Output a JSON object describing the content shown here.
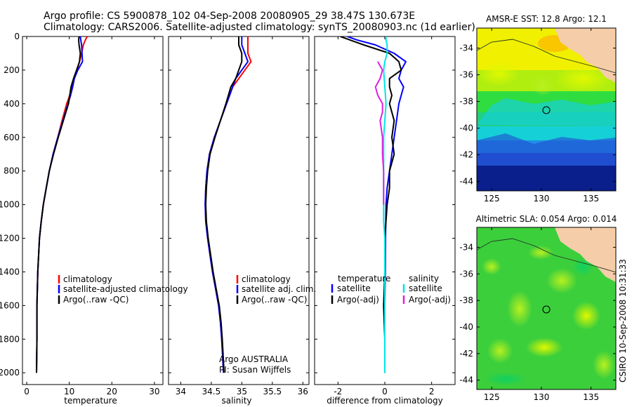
{
  "header": {
    "line1": "Argo profile: CS 5900878_102 04-Sep-2008 20080905_29 38.47S 130.673E",
    "line2": "Climatology: CARS2006. Satellite-adjusted climatology: synTS_20080903.nc (1d earlier)"
  },
  "side_label": "CSIRO 10-Sep-2008 10:31:33",
  "chart_data": [
    {
      "id": "temperature",
      "type": "line",
      "xlabel": "temperature",
      "ylabel": "",
      "xlim": [
        -1,
        32
      ],
      "ylim": [
        2070,
        0
      ],
      "xticks": [
        0,
        10,
        20,
        30
      ],
      "yticks": [
        0,
        200,
        400,
        600,
        800,
        1000,
        1200,
        1400,
        1600,
        1800,
        2000
      ],
      "legend": [
        "climatology",
        "satellite-adjusted climatology",
        "Argo(..raw -QC)"
      ],
      "series": [
        {
          "name": "climatology",
          "color": "#ff0000",
          "x": [
            14.2,
            13.8,
            13.3,
            12.9,
            12.4,
            11.8,
            11.1,
            10.6,
            10.1,
            9.4,
            8.3,
            7.3,
            6.2,
            5.3,
            4.6,
            3.9,
            3.4,
            3.0,
            2.8,
            2.6,
            2.5,
            2.4,
            2.4,
            2.3
          ],
          "y": [
            0,
            20,
            50,
            100,
            150,
            200,
            250,
            300,
            350,
            400,
            500,
            600,
            700,
            800,
            900,
            1000,
            1100,
            1200,
            1300,
            1400,
            1500,
            1600,
            1800,
            2000
          ]
        },
        {
          "name": "satellite-adjusted climatology",
          "color": "#0000ff",
          "x": [
            12.6,
            12.7,
            12.9,
            13.0,
            13.1,
            12.0,
            11.2,
            10.8,
            10.3,
            9.7,
            8.5,
            7.3,
            6.2,
            5.3,
            4.6,
            3.9,
            3.4,
            3.0,
            2.8,
            2.6,
            2.5,
            2.4,
            2.4,
            2.3
          ],
          "y": [
            0,
            20,
            50,
            100,
            150,
            200,
            250,
            300,
            350,
            400,
            500,
            600,
            700,
            800,
            900,
            1000,
            1100,
            1200,
            1300,
            1400,
            1500,
            1600,
            1800,
            2000
          ]
        },
        {
          "name": "Argo(..raw -QC)",
          "color": "#000000",
          "x": [
            12.3,
            12.2,
            12.3,
            12.6,
            12.4,
            11.7,
            11.0,
            10.4,
            10.1,
            9.8,
            8.6,
            7.4,
            6.3,
            5.3,
            4.6,
            3.9,
            3.4,
            3.0,
            2.8,
            2.6,
            2.5,
            2.4,
            2.4,
            2.3
          ],
          "y": [
            0,
            20,
            50,
            100,
            150,
            200,
            250,
            300,
            350,
            400,
            500,
            600,
            700,
            800,
            900,
            1000,
            1100,
            1200,
            1300,
            1400,
            1500,
            1600,
            1800,
            2000
          ]
        }
      ]
    },
    {
      "id": "salinity",
      "type": "line",
      "xlabel": "salinity",
      "ylabel": "",
      "xlim": [
        33.8,
        36.1
      ],
      "ylim": [
        2070,
        0
      ],
      "xticks": [
        34,
        34.5,
        35,
        35.5,
        36
      ],
      "xticklabels": [
        "34",
        "34.5",
        "35",
        "35.5",
        "36"
      ],
      "legend": [
        "climatology",
        "satellite adj. clim.",
        "Argo(..raw -QC)"
      ],
      "annotation": [
        "Argo AUSTRALIA",
        "PI: Susan Wijffels"
      ],
      "series": [
        {
          "name": "climatology",
          "color": "#ff0000",
          "x": [
            35.1,
            35.1,
            35.1,
            35.1,
            35.15,
            35.05,
            34.95,
            34.85,
            34.8,
            34.75,
            34.65,
            34.55,
            34.47,
            34.43,
            34.41,
            34.4,
            34.41,
            34.44,
            34.48,
            34.52,
            34.57,
            34.62,
            34.65,
            34.67,
            34.7
          ],
          "y": [
            0,
            20,
            50,
            100,
            150,
            200,
            250,
            300,
            350,
            400,
            500,
            600,
            700,
            800,
            900,
            1000,
            1100,
            1200,
            1300,
            1400,
            1500,
            1600,
            1700,
            1800,
            2000
          ]
        },
        {
          "name": "satellite adj. clim.",
          "color": "#0000ff",
          "x": [
            35.0,
            35.0,
            35.0,
            35.05,
            35.1,
            35.0,
            34.9,
            34.85,
            34.8,
            34.75,
            34.65,
            34.55,
            34.47,
            34.43,
            34.41,
            34.4,
            34.41,
            34.44,
            34.48,
            34.52,
            34.57,
            34.62,
            34.65,
            34.67,
            34.7
          ],
          "y": [
            0,
            20,
            50,
            100,
            150,
            200,
            250,
            300,
            350,
            400,
            500,
            600,
            700,
            800,
            900,
            1000,
            1100,
            1200,
            1300,
            1400,
            1500,
            1600,
            1700,
            1800,
            2000
          ]
        },
        {
          "name": "Argo(..raw -QC)",
          "color": "#000000",
          "x": [
            34.95,
            34.95,
            34.95,
            35.0,
            35.0,
            34.95,
            34.9,
            34.82,
            34.78,
            34.74,
            34.65,
            34.56,
            34.48,
            34.44,
            34.42,
            34.41,
            34.42,
            34.45,
            34.49,
            34.53,
            34.58,
            34.63,
            34.66,
            34.68,
            34.71
          ],
          "y": [
            0,
            20,
            50,
            100,
            150,
            200,
            250,
            300,
            350,
            400,
            500,
            600,
            700,
            800,
            900,
            1000,
            1100,
            1200,
            1300,
            1400,
            1500,
            1600,
            1700,
            1800,
            2000
          ]
        }
      ]
    },
    {
      "id": "difference",
      "type": "line",
      "xlabel": "difference from climatology",
      "ylabel": "",
      "xlim": [
        -3,
        3
      ],
      "ylim": [
        2070,
        0
      ],
      "xticks": [
        -2,
        0,
        2
      ],
      "legend_temperature_title": "temperature",
      "legend_salinity_title": "salinity",
      "legend": [
        "satellite",
        "Argo(-adj)",
        "satellite",
        "Argo(-adj)"
      ],
      "series": [
        {
          "name": "temperature satellite",
          "color": "#0000ff",
          "x": [
            -1.6,
            -1.2,
            -0.4,
            0.4,
            0.9,
            0.7,
            0.6,
            0.8,
            0.7,
            0.6,
            0.5,
            0.4,
            0.3,
            0.2,
            0.1,
            0.05,
            0.03,
            0.02,
            0.0,
            0.0,
            0.0
          ],
          "y": [
            0,
            20,
            50,
            100,
            150,
            200,
            250,
            300,
            350,
            400,
            500,
            600,
            700,
            800,
            900,
            1000,
            1200,
            1400,
            1600,
            1800,
            2000
          ]
        },
        {
          "name": "temperature Argo(-adj)",
          "color": "#000000",
          "x": [
            -1.9,
            -1.5,
            -0.9,
            0.2,
            0.6,
            0.7,
            0.2,
            0.2,
            0.3,
            0.2,
            0.4,
            0.3,
            0.4,
            0.2,
            0.2,
            0.1,
            0.0,
            0.0,
            -0.05,
            0.0,
            0.0
          ],
          "y": [
            0,
            20,
            50,
            100,
            150,
            200,
            250,
            300,
            350,
            400,
            500,
            600,
            700,
            800,
            900,
            1000,
            1200,
            1400,
            1600,
            1800,
            2000
          ]
        },
        {
          "name": "salinity satellite",
          "color": "#00e5e5",
          "x": [
            0.05,
            0.05,
            0.1,
            0.1,
            0.0,
            -0.05,
            0.0,
            0.05,
            0.0,
            -0.05,
            -0.05,
            -0.05,
            -0.05,
            -0.05,
            -0.05,
            0.0,
            0.0,
            0.0,
            0.0,
            0.0
          ],
          "y": [
            0,
            20,
            50,
            100,
            150,
            200,
            300,
            400,
            500,
            600,
            700,
            800,
            900,
            1000,
            1100,
            1200,
            1400,
            1600,
            1800,
            2000
          ]
        },
        {
          "name": "salinity Argo(-adj)",
          "color": "#e020e0",
          "x": [
            -0.3,
            -0.2,
            -0.1,
            -0.2,
            -0.4,
            -0.3,
            -0.1,
            -0.1,
            -0.2,
            -0.1,
            -0.1,
            -0.05,
            -0.05,
            -0.05
          ],
          "y": [
            150,
            175,
            200,
            250,
            300,
            350,
            400,
            450,
            500,
            600,
            700,
            800,
            900,
            1000
          ]
        }
      ]
    },
    {
      "id": "sst-map",
      "type": "heatmap",
      "title": "AMSR-E SST: 12.8 Argo: 12.1",
      "xlim": [
        123.5,
        137.5
      ],
      "ylim": [
        -44.7,
        -32.5
      ],
      "xticks": [
        125,
        130,
        135
      ],
      "yticks": [
        -34,
        -36,
        -38,
        -40,
        -42,
        -44
      ],
      "marker": {
        "lon": 130.673,
        "lat": -38.47
      }
    },
    {
      "id": "sla-map",
      "type": "heatmap",
      "title": "Altimetric SLA: 0.054 Argo: 0.014",
      "xlim": [
        123.5,
        137.5
      ],
      "ylim": [
        -44.7,
        -32.5
      ],
      "xticks": [
        125,
        130,
        135
      ],
      "yticks": [
        -34,
        -36,
        -38,
        -40,
        -42,
        -44
      ],
      "marker": {
        "lon": 130.673,
        "lat": -38.47
      }
    }
  ]
}
